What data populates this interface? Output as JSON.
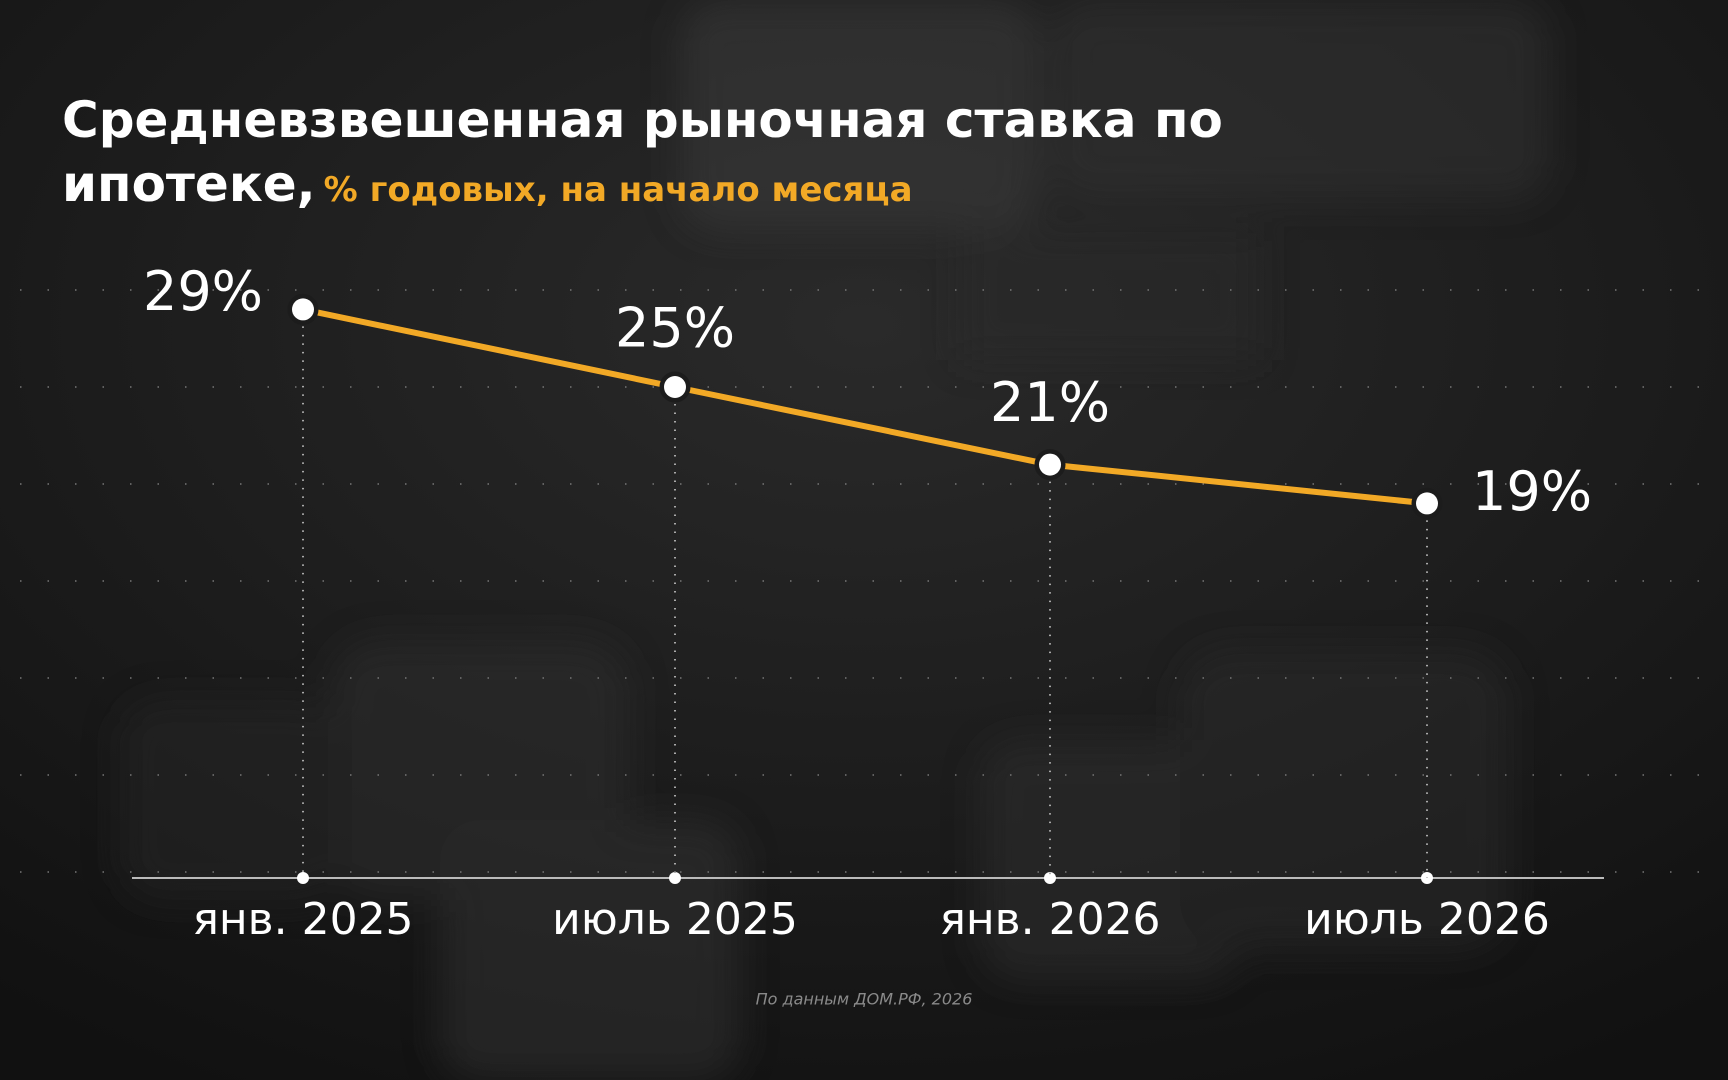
{
  "chart_data": {
    "type": "line",
    "title": "Средневзвешенная рыночная ставка по ипотеке,",
    "subtitle": "% годовых, на начало месяца",
    "categories": [
      "янв. 2025",
      "июль 2025",
      "янв. 2026",
      "июль 2026"
    ],
    "series": [
      {
        "color": "#f2a926",
        "values": [
          29,
          25,
          21,
          19
        ],
        "value_labels": [
          "29%",
          "25%",
          "21%",
          "19%"
        ]
      }
    ],
    "ylim": [
      0,
      30
    ],
    "yticks": [
      0,
      5,
      10,
      15,
      20,
      25,
      30
    ],
    "grid": true,
    "source": "По данным ДОМ.РФ, 2026"
  }
}
